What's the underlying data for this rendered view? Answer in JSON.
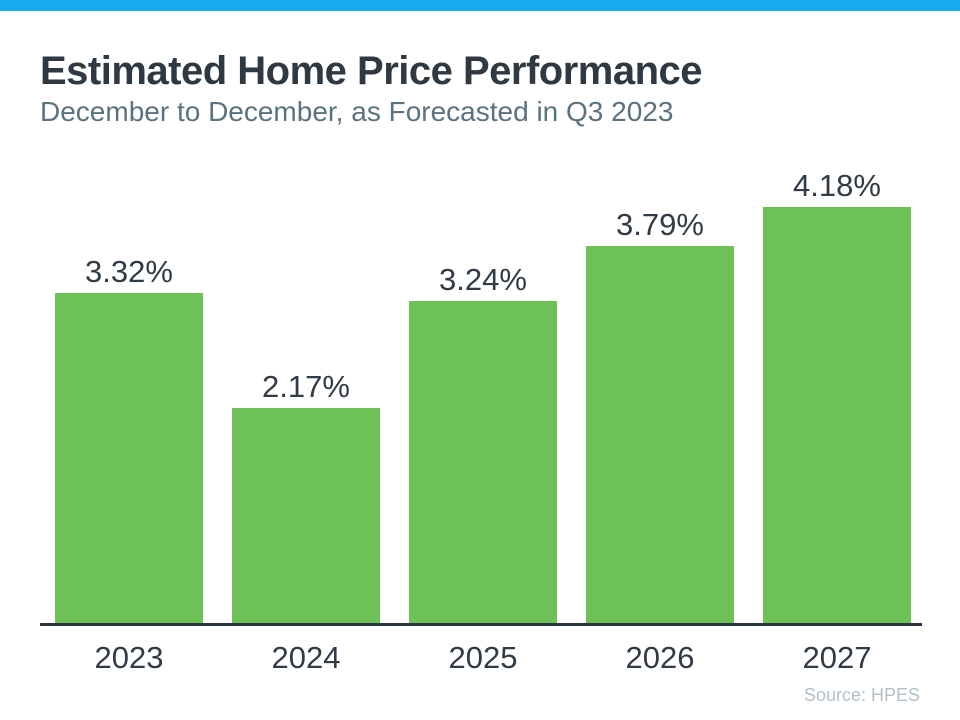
{
  "header": {
    "title": "Estimated Home Price Performance",
    "subtitle": "December to December, as Forecasted in Q3 2023"
  },
  "chart_data": {
    "type": "bar",
    "categories": [
      "2023",
      "2024",
      "2025",
      "2026",
      "2027"
    ],
    "values": [
      3.32,
      2.17,
      3.24,
      3.79,
      4.18
    ],
    "value_labels": [
      "3.32%",
      "2.17%",
      "3.24%",
      "3.79%",
      "4.18%"
    ],
    "title": "Estimated Home Price Performance",
    "subtitle": "December to December, as Forecasted in Q3 2023",
    "xlabel": "",
    "ylabel": "",
    "ylim": [
      0,
      4.5
    ],
    "grid": false,
    "legend": false,
    "bar_color": "#6EC156",
    "annotation_position": "above-bars"
  },
  "footer": {
    "source": "Source: HPES"
  },
  "colors": {
    "accent_bar": "#18ABEC",
    "bar_green": "#6EC156",
    "title_text": "#2E3943",
    "subtitle_text": "#5B7280",
    "label_text": "#303B45",
    "axis_line": "#2C3640",
    "source_text": "#B1C0C8"
  }
}
